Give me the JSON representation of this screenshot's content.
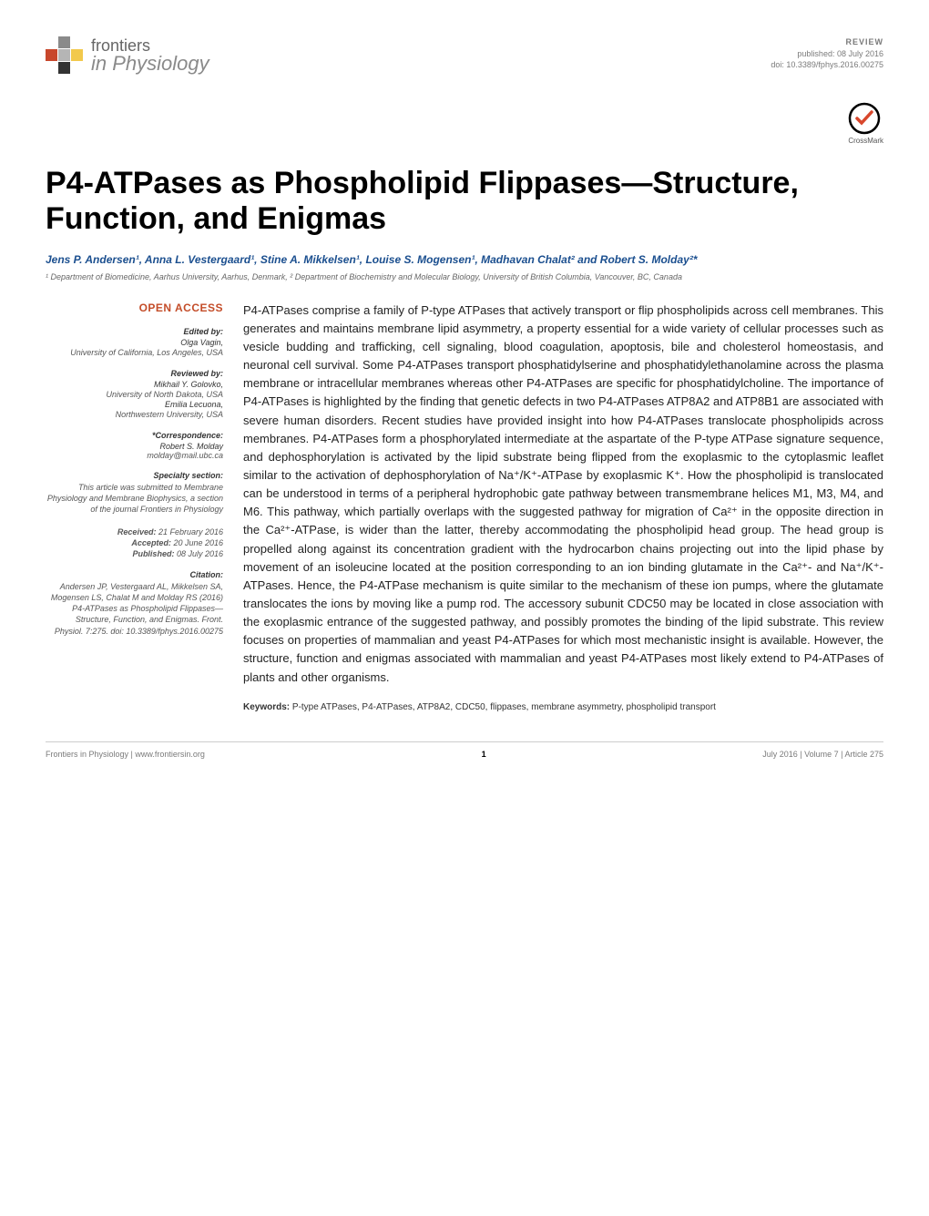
{
  "header": {
    "logo_top": "frontiers",
    "logo_bottom": "in Physiology",
    "article_type": "REVIEW",
    "pub_date": "published: 08 July 2016",
    "doi": "doi: 10.3389/fphys.2016.00275"
  },
  "crossmark_label": "CrossMark",
  "title": "P4-ATPases as Phospholipid Flippases—Structure, Function, and Enigmas",
  "authors_html": "Jens P. Andersen¹, Anna L. Vestergaard¹, Stine A. Mikkelsen¹, Louise S. Mogensen¹, Madhavan Chalat² and Robert S. Molday²*",
  "affiliations": "¹ Department of Biomedicine, Aarhus University, Aarhus, Denmark, ² Department of Biochemistry and Molecular Biology, University of British Columbia, Vancouver, BC, Canada",
  "sidebar": {
    "open_access": "OPEN ACCESS",
    "edited_by_hd": "Edited by:",
    "edited_by_name": "Olga Vagin,",
    "edited_by_aff": "University of California, Los Angeles, USA",
    "reviewed_by_hd": "Reviewed by:",
    "reviewer1_name": "Mikhail Y. Golovko,",
    "reviewer1_aff": "University of North Dakota, USA",
    "reviewer2_name": "Emilia Lecuona,",
    "reviewer2_aff": "Northwestern University, USA",
    "corr_hd": "*Correspondence:",
    "corr_name": "Robert S. Molday",
    "corr_email": "molday@mail.ubc.ca",
    "section_hd": "Specialty section:",
    "section_body": "This article was submitted to Membrane Physiology and Membrane Biophysics, a section of the journal Frontiers in Physiology",
    "received": "Received: 21 February 2016",
    "accepted": "Accepted: 20 June 2016",
    "published": "Published: 08 July 2016",
    "citation_hd": "Citation:",
    "citation_body": "Andersen JP, Vestergaard AL, Mikkelsen SA, Mogensen LS, Chalat M and Molday RS (2016) P4-ATPases as Phospholipid Flippases—Structure, Function, and Enigmas. Front. Physiol. 7:275. doi: 10.3389/fphys.2016.00275"
  },
  "abstract": "P4-ATPases comprise a family of P-type ATPases that actively transport or flip phospholipids across cell membranes. This generates and maintains membrane lipid asymmetry, a property essential for a wide variety of cellular processes such as vesicle budding and trafficking, cell signaling, blood coagulation, apoptosis, bile and cholesterol homeostasis, and neuronal cell survival. Some P4-ATPases transport phosphatidylserine and phosphatidylethanolamine across the plasma membrane or intracellular membranes whereas other P4-ATPases are specific for phosphatidylcholine. The importance of P4-ATPases is highlighted by the finding that genetic defects in two P4-ATPases ATP8A2 and ATP8B1 are associated with severe human disorders. Recent studies have provided insight into how P4-ATPases translocate phospholipids across membranes. P4-ATPases form a phosphorylated intermediate at the aspartate of the P-type ATPase signature sequence, and dephosphorylation is activated by the lipid substrate being flipped from the exoplasmic to the cytoplasmic leaflet similar to the activation of dephosphorylation of Na⁺/K⁺-ATPase by exoplasmic K⁺. How the phospholipid is translocated can be understood in terms of a peripheral hydrophobic gate pathway between transmembrane helices M1, M3, M4, and M6. This pathway, which partially overlaps with the suggested pathway for migration of Ca²⁺ in the opposite direction in the Ca²⁺-ATPase, is wider than the latter, thereby accommodating the phospholipid head group. The head group is propelled along against its concentration gradient with the hydrocarbon chains projecting out into the lipid phase by movement of an isoleucine located at the position corresponding to an ion binding glutamate in the Ca²⁺- and Na⁺/K⁺-ATPases. Hence, the P4-ATPase mechanism is quite similar to the mechanism of these ion pumps, where the glutamate translocates the ions by moving like a pump rod. The accessory subunit CDC50 may be located in close association with the exoplasmic entrance of the suggested pathway, and possibly promotes the binding of the lipid substrate. This review focuses on properties of mammalian and yeast P4-ATPases for which most mechanistic insight is available. However, the structure, function and enigmas associated with mammalian and yeast P4-ATPases most likely extend to P4-ATPases of plants and other organisms.",
  "keywords_label": "Keywords:",
  "keywords": "P-type ATPases, P4-ATPases, ATP8A2, CDC50, flippases, membrane asymmetry, phospholipid transport",
  "footer": {
    "left": "Frontiers in Physiology | www.frontiersin.org",
    "page": "1",
    "right": "July 2016 | Volume 7 | Article 275"
  }
}
